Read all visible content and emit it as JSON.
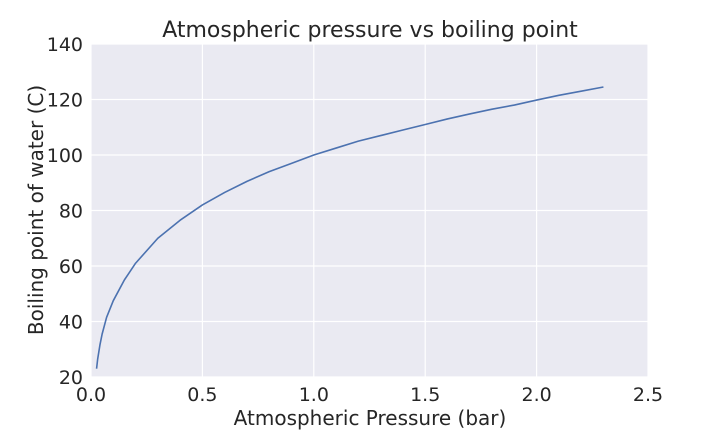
{
  "chart_data": {
    "type": "line",
    "title": "Atmospheric pressure vs boiling point",
    "xlabel": "Atmospheric Pressure (bar)",
    "ylabel": "Boiling point of water (C)",
    "xlim": [
      0.0,
      2.5
    ],
    "ylim": [
      20,
      140
    ],
    "xticks": [
      0.0,
      0.5,
      1.0,
      1.5,
      2.0,
      2.5
    ],
    "xtick_labels": [
      "0.0",
      "0.5",
      "1.0",
      "1.5",
      "2.0",
      "2.5"
    ],
    "yticks": [
      20,
      40,
      60,
      80,
      100,
      120,
      140
    ],
    "ytick_labels": [
      "20",
      "40",
      "60",
      "80",
      "100",
      "120",
      "140"
    ],
    "grid": true,
    "background_color": "#eaeaf2",
    "grid_color": "#ffffff",
    "line_color": "#4c72b0",
    "series": [
      {
        "x": [
          0.025,
          0.03,
          0.04,
          0.05,
          0.07,
          0.1,
          0.15,
          0.2,
          0.3,
          0.4,
          0.5,
          0.6,
          0.7,
          0.8,
          0.9,
          1.0,
          1.1,
          1.2,
          1.3,
          1.4,
          1.5,
          1.6,
          1.7,
          1.8,
          1.9,
          2.0,
          2.1,
          2.2,
          2.3
        ],
        "y": [
          23.0,
          26.5,
          31.5,
          35.5,
          41.5,
          47.5,
          55.0,
          61.0,
          70.0,
          76.5,
          82.0,
          86.5,
          90.5,
          94.0,
          97.0,
          100.0,
          102.5,
          105.0,
          107.0,
          109.0,
          111.0,
          113.0,
          114.8,
          116.5,
          118.0,
          119.8,
          121.5,
          123.0,
          124.5
        ]
      }
    ]
  }
}
